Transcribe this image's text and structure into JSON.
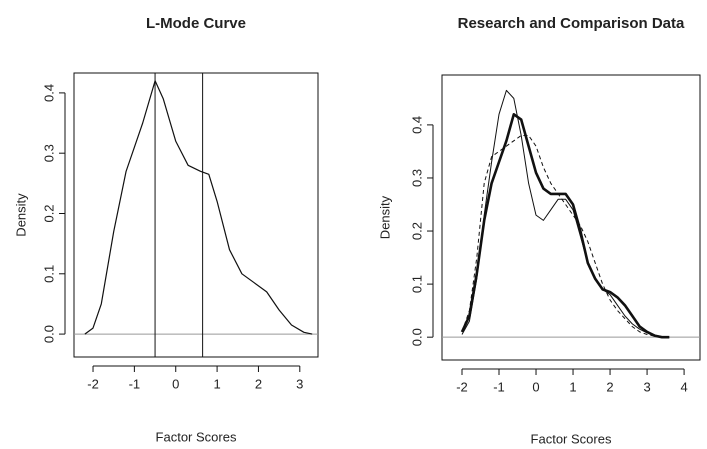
{
  "chart_data": [
    {
      "type": "line",
      "title": "L-Mode Curve",
      "x_label": "Factor Scores",
      "y_label": "Density",
      "xlim": [
        -2.46,
        3.44
      ],
      "ylim": [
        -0.038,
        0.433
      ],
      "xticks": [
        -2,
        -1,
        0,
        1,
        2,
        3
      ],
      "yticks": [
        {
          "value": 0,
          "label": "0.0"
        },
        0.1,
        0.2,
        0.3,
        0.4
      ],
      "vlines": [
        -0.5,
        0.65
      ],
      "hline": 0,
      "x": [
        -2.2,
        -2,
        -1.8,
        -1.5,
        -1.2,
        -1,
        -0.8,
        -0.5,
        -0.3,
        0,
        0.3,
        0.6,
        0.8,
        1,
        1.3,
        1.6,
        1.9,
        2.2,
        2.5,
        2.8,
        3.1,
        3.3
      ],
      "series": [
        {
          "color": "#111111",
          "style": "solid",
          "line_width": 1.2,
          "values": [
            0,
            0.01,
            0.05,
            0.17,
            0.27,
            0.31,
            0.35,
            0.42,
            0.39,
            0.32,
            0.28,
            0.27,
            0.265,
            0.22,
            0.14,
            0.1,
            0.085,
            0.07,
            0.04,
            0.015,
            0.003,
            0
          ]
        }
      ]
    },
    {
      "type": "line",
      "title": "Research and Comparison Data",
      "x_label": "Factor Scores",
      "y_label": "Density",
      "xlim": [
        -2.54,
        4.43
      ],
      "ylim": [
        -0.043,
        0.494
      ],
      "xticks": [
        -2,
        -1,
        0,
        1,
        2,
        3,
        4
      ],
      "yticks": [
        {
          "value": 0,
          "label": "0.0"
        },
        0.1,
        0.2,
        0.3,
        0.4
      ],
      "hline": 0,
      "x": [
        -2,
        -1.8,
        -1.6,
        -1.4,
        -1.2,
        -1,
        -0.8,
        -0.6,
        -0.4,
        -0.2,
        0,
        0.2,
        0.4,
        0.6,
        0.8,
        1,
        1.2,
        1.4,
        1.6,
        1.8,
        2,
        2.2,
        2.4,
        2.6,
        2.8,
        3,
        3.2,
        3.4,
        3.6
      ],
      "series": [
        {
          "color": "#111111",
          "style": "solid",
          "line_width": 2.6,
          "values": [
            0.01,
            0.04,
            0.12,
            0.22,
            0.29,
            0.33,
            0.37,
            0.42,
            0.41,
            0.36,
            0.31,
            0.28,
            0.27,
            0.27,
            0.27,
            0.25,
            0.2,
            0.14,
            0.11,
            0.09,
            0.085,
            0.075,
            0.06,
            0.04,
            0.02,
            0.01,
            0.003,
            0,
            0
          ]
        },
        {
          "color": "#111111",
          "style": "solid",
          "line_width": 1,
          "values": [
            0.005,
            0.03,
            0.11,
            0.23,
            0.33,
            0.42,
            0.465,
            0.45,
            0.38,
            0.29,
            0.23,
            0.22,
            0.24,
            0.26,
            0.26,
            0.24,
            0.19,
            0.14,
            0.11,
            0.09,
            0.08,
            0.06,
            0.04,
            0.025,
            0.015,
            0.008,
            0.004,
            0.001,
            0
          ]
        },
        {
          "color": "#111111",
          "style": "dashed",
          "line_width": 1,
          "values": [
            0.01,
            0.05,
            0.15,
            0.29,
            0.34,
            0.35,
            0.36,
            0.37,
            0.38,
            0.38,
            0.36,
            0.32,
            0.29,
            0.27,
            0.25,
            0.23,
            0.21,
            0.18,
            0.14,
            0.1,
            0.07,
            0.05,
            0.035,
            0.02,
            0.01,
            0.005,
            0.002,
            0,
            0
          ]
        }
      ]
    }
  ]
}
